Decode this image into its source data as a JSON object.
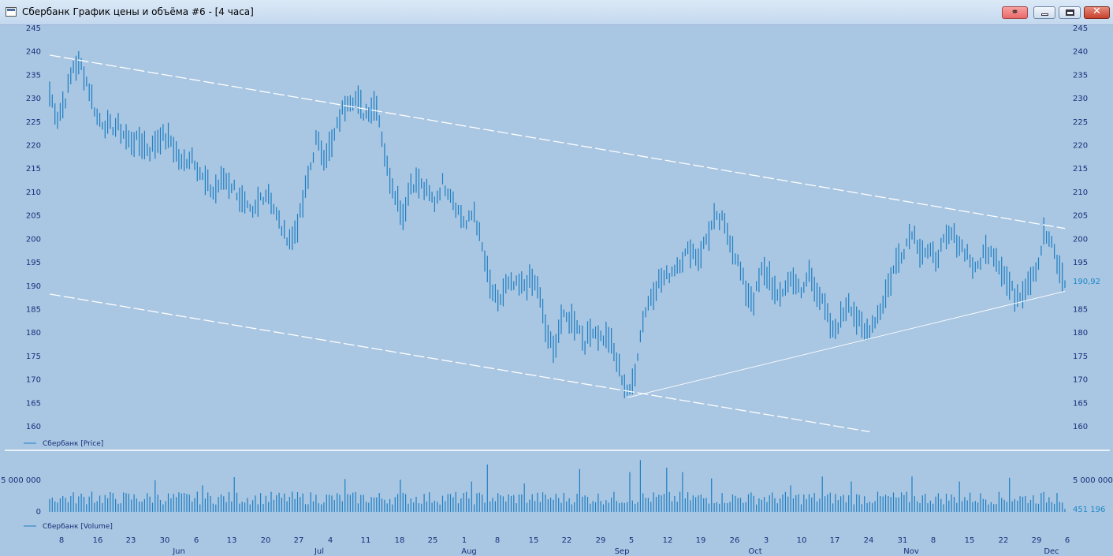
{
  "window": {
    "title": "Сбербанк График цены и объёма #6 - [4 часа]",
    "controls": {
      "close_glyph": "✕",
      "link_glyph": "⚭"
    },
    "icons": [
      "chart-window-icon",
      "link-icon",
      "minimize-icon",
      "maximize-icon",
      "close-icon"
    ]
  },
  "colors": {
    "background": "#a9c6e2",
    "bars": "#1d7fc4",
    "trendlines": "#ffffff",
    "axis_text": "#1a2f7a",
    "last_value": "#1d88c9"
  },
  "chart_data": [
    {
      "type": "bar",
      "style": "price-bars",
      "title": "",
      "legend": "Сбербанк [Price]",
      "legend_position": "bottom-left",
      "ylim": [
        160,
        245
      ],
      "y_ticks": [
        245,
        240,
        235,
        230,
        225,
        220,
        215,
        210,
        205,
        200,
        195,
        190,
        185,
        180,
        175,
        170,
        165,
        160
      ],
      "last_value": "190,92",
      "grid": false,
      "x_tick_labels": [
        "8",
        "16",
        "23",
        "30",
        "6",
        "13",
        "20",
        "27",
        "4",
        "11",
        "18",
        "25",
        "1",
        "8",
        "15",
        "22",
        "29",
        "5",
        "12",
        "19",
        "26",
        "3",
        "10",
        "17",
        "24",
        "31",
        "8",
        "15",
        "22",
        "29",
        "6"
      ],
      "month_labels": [
        "Jun",
        "Jul",
        "Aug",
        "Sep",
        "Oct",
        "Nov",
        "Dec"
      ],
      "anchors": [
        [
          0,
          231
        ],
        [
          3,
          226
        ],
        [
          6,
          230
        ],
        [
          9,
          237
        ],
        [
          12,
          237
        ],
        [
          15,
          232
        ],
        [
          18,
          226
        ],
        [
          22,
          224
        ],
        [
          26,
          224
        ],
        [
          30,
          221
        ],
        [
          34,
          221
        ],
        [
          38,
          219
        ],
        [
          42,
          222
        ],
        [
          46,
          221
        ],
        [
          50,
          216
        ],
        [
          54,
          218
        ],
        [
          58,
          213
        ],
        [
          62,
          210
        ],
        [
          66,
          213
        ],
        [
          70,
          211
        ],
        [
          74,
          207
        ],
        [
          77,
          205
        ],
        [
          80,
          209
        ],
        [
          83,
          210
        ],
        [
          86,
          205
        ],
        [
          89,
          201
        ],
        [
          92,
          200
        ],
        [
          95,
          205
        ],
        [
          98,
          213
        ],
        [
          101,
          221
        ],
        [
          104,
          218
        ],
        [
          107,
          220
        ],
        [
          110,
          226
        ],
        [
          113,
          230
        ],
        [
          116,
          230
        ],
        [
          119,
          227
        ],
        [
          122,
          228
        ],
        [
          124,
          229
        ],
        [
          126,
          222
        ],
        [
          128,
          215
        ],
        [
          131,
          210
        ],
        [
          134,
          205
        ],
        [
          137,
          212
        ],
        [
          140,
          212
        ],
        [
          143,
          210
        ],
        [
          146,
          208
        ],
        [
          149,
          212
        ],
        [
          152,
          210
        ],
        [
          155,
          206
        ],
        [
          158,
          203
        ],
        [
          161,
          206
        ],
        [
          164,
          198
        ],
        [
          167,
          190
        ],
        [
          170,
          186
        ],
        [
          173,
          190
        ],
        [
          176,
          190
        ],
        [
          179,
          190
        ],
        [
          182,
          191
        ],
        [
          185,
          190
        ],
        [
          188,
          181
        ],
        [
          191,
          176
        ],
        [
          194,
          183
        ],
        [
          197,
          183
        ],
        [
          200,
          182
        ],
        [
          203,
          178
        ],
        [
          206,
          181
        ],
        [
          209,
          179
        ],
        [
          212,
          179
        ],
        [
          215,
          174
        ],
        [
          218,
          169
        ],
        [
          220,
          167
        ],
        [
          222,
          172
        ],
        [
          225,
          183
        ],
        [
          228,
          188
        ],
        [
          231,
          191
        ],
        [
          234,
          192
        ],
        [
          237,
          194
        ],
        [
          240,
          196
        ],
        [
          243,
          198
        ],
        [
          246,
          196
        ],
        [
          249,
          200
        ],
        [
          252,
          204
        ],
        [
          255,
          204
        ],
        [
          258,
          200
        ],
        [
          261,
          195
        ],
        [
          264,
          189
        ],
        [
          267,
          187
        ],
        [
          270,
          193
        ],
        [
          273,
          192
        ],
        [
          276,
          187
        ],
        [
          279,
          190
        ],
        [
          282,
          192
        ],
        [
          285,
          188
        ],
        [
          288,
          193
        ],
        [
          291,
          189
        ],
        [
          294,
          185
        ],
        [
          297,
          180
        ],
        [
          300,
          183
        ],
        [
          303,
          187
        ],
        [
          306,
          183
        ],
        [
          309,
          180
        ],
        [
          312,
          182
        ],
        [
          315,
          185
        ],
        [
          318,
          190
        ],
        [
          321,
          195
        ],
        [
          324,
          198
        ],
        [
          327,
          202
        ],
        [
          330,
          198
        ],
        [
          333,
          197
        ],
        [
          336,
          196
        ],
        [
          339,
          199
        ],
        [
          342,
          201
        ],
        [
          345,
          199
        ],
        [
          348,
          197
        ],
        [
          351,
          193
        ],
        [
          354,
          197
        ],
        [
          357,
          198
        ],
        [
          360,
          195
        ],
        [
          363,
          191
        ],
        [
          366,
          188
        ],
        [
          369,
          189
        ],
        [
          372,
          192
        ],
        [
          375,
          195
        ],
        [
          377,
          201
        ],
        [
          379,
          200
        ],
        [
          381,
          197
        ],
        [
          383,
          193
        ],
        [
          385,
          191
        ]
      ],
      "trendlines": [
        {
          "name": "upper-resistance",
          "from": [
            0,
            239.3
          ],
          "to": [
            385,
            202.3
          ],
          "dashed": true
        },
        {
          "name": "lower-channel",
          "from": [
            0,
            188.3
          ],
          "to": [
            311,
            158.9
          ],
          "dashed": true
        },
        {
          "name": "rising-support",
          "from": [
            219,
            166.2
          ],
          "to": [
            385,
            188.9
          ],
          "dashed": false
        }
      ]
    },
    {
      "type": "bar",
      "style": "volume",
      "title": "",
      "legend": "Сбербанк [Volume]",
      "legend_position": "bottom-left",
      "ylim": [
        0,
        8000000
      ],
      "y_ticks_left": [
        "5 000 000",
        "0"
      ],
      "y_ticks_right": [
        "5 000 000"
      ],
      "y_tick_values": [
        5000000,
        0
      ],
      "last_value": "451 196",
      "typical_volume": 2300000,
      "spikes": [
        [
          16,
          3200000
        ],
        [
          40,
          5000000
        ],
        [
          58,
          4200000
        ],
        [
          70,
          5500000
        ],
        [
          112,
          5200000
        ],
        [
          133,
          5100000
        ],
        [
          160,
          4800000
        ],
        [
          166,
          7500000
        ],
        [
          180,
          4500000
        ],
        [
          201,
          6800000
        ],
        [
          220,
          6300000
        ],
        [
          224,
          8200000
        ],
        [
          234,
          7000000
        ],
        [
          240,
          6300000
        ],
        [
          251,
          5300000
        ],
        [
          281,
          4200000
        ],
        [
          293,
          5600000
        ],
        [
          304,
          4800000
        ],
        [
          327,
          5600000
        ],
        [
          345,
          4800000
        ],
        [
          364,
          5400000
        ],
        [
          382,
          3000000
        ]
      ]
    }
  ]
}
